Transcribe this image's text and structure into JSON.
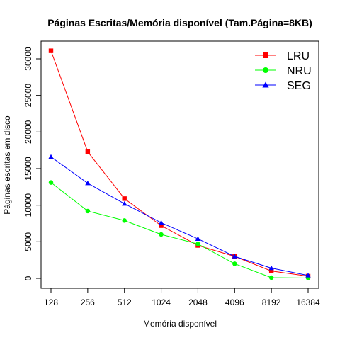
{
  "chart_data": {
    "type": "line",
    "title": "Páginas Escritas/Memória disponível (Tam.Página=8KB)",
    "xlabel": "Memória disponível",
    "ylabel": "Páginas escritas em disco",
    "categories": [
      "128",
      "256",
      "512",
      "1024",
      "2048",
      "4096",
      "8192",
      "16384"
    ],
    "ylim": [
      -1000,
      32000
    ],
    "yticks": [
      0,
      5000,
      10000,
      15000,
      20000,
      25000,
      30000
    ],
    "grid": false,
    "legend_position": "top-right",
    "series": [
      {
        "name": "LRU",
        "color": "#ff0000",
        "marker": "square",
        "values": [
          31100,
          17300,
          10900,
          7200,
          4500,
          3000,
          1000,
          300
        ]
      },
      {
        "name": "NRU",
        "color": "#00ff00",
        "marker": "circle",
        "values": [
          13100,
          9200,
          7900,
          6000,
          4700,
          2000,
          100,
          50
        ]
      },
      {
        "name": "SEG",
        "color": "#0000ff",
        "marker": "triangle",
        "values": [
          16600,
          13000,
          10200,
          7600,
          5400,
          3000,
          1400,
          400
        ]
      }
    ]
  }
}
